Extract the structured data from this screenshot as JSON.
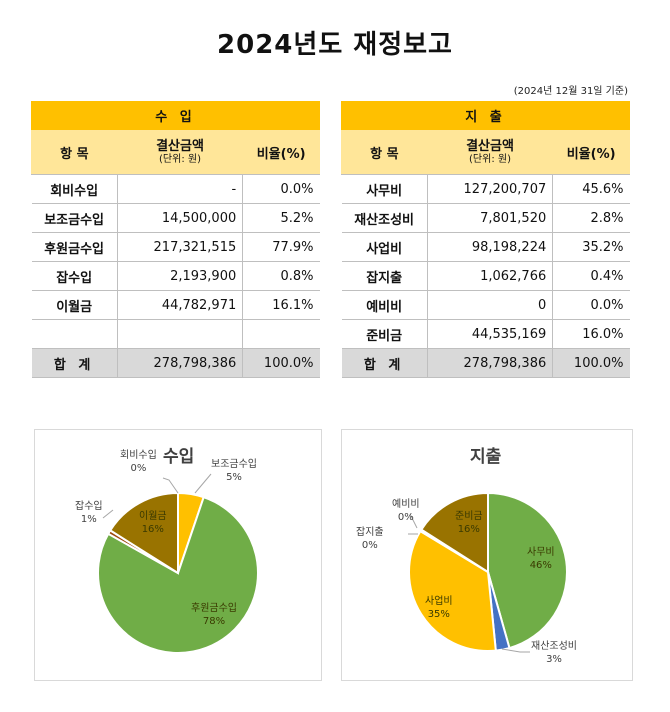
{
  "title": "2024년도 재정보고",
  "basis_date": "(2024년 12월 31일 기준)",
  "income_table": {
    "section": "수 입",
    "headers": {
      "item": "항 목",
      "amount": "결산금액",
      "unit": "(단위: 원)",
      "ratio": "비율(%)"
    },
    "rows": [
      {
        "item": "회비수입",
        "amount": "-",
        "ratio": "0.0%"
      },
      {
        "item": "보조금수입",
        "amount": "14,500,000",
        "ratio": "5.2%"
      },
      {
        "item": "후원금수입",
        "amount": "217,321,515",
        "ratio": "77.9%"
      },
      {
        "item": "잡수입",
        "amount": "2,193,900",
        "ratio": "0.8%"
      },
      {
        "item": "이월금",
        "amount": "44,782,971",
        "ratio": "16.1%"
      },
      {
        "item": "",
        "amount": "",
        "ratio": ""
      }
    ],
    "total": {
      "item": "합 계",
      "amount": "278,798,386",
      "ratio": "100.0%"
    }
  },
  "expense_table": {
    "section": "지 출",
    "headers": {
      "item": "항 목",
      "amount": "결산금액",
      "unit": "(단위: 원)",
      "ratio": "비율(%)"
    },
    "rows": [
      {
        "item": "사무비",
        "amount": "127,200,707",
        "ratio": "45.6%"
      },
      {
        "item": "재산조성비",
        "amount": "7,801,520",
        "ratio": "2.8%"
      },
      {
        "item": "사업비",
        "amount": "98,198,224",
        "ratio": "35.2%"
      },
      {
        "item": "잡지출",
        "amount": "1,062,766",
        "ratio": "0.4%"
      },
      {
        "item": "예비비",
        "amount": "0",
        "ratio": "0.0%"
      },
      {
        "item": "준비금",
        "amount": "44,535,169",
        "ratio": "16.0%"
      }
    ],
    "total": {
      "item": "합 계",
      "amount": "278,798,386",
      "ratio": "100.0%"
    }
  },
  "chart_data": [
    {
      "type": "pie",
      "title": "수입",
      "slices": [
        {
          "label": "회비수입",
          "value": 0,
          "pct_label": "0%",
          "color": "#ffc000"
        },
        {
          "label": "보조금수입",
          "value": 14500000,
          "pct_label": "5%",
          "color": "#ffc000"
        },
        {
          "label": "후원금수입",
          "value": 217321515,
          "pct_label": "78%",
          "color": "#70ad47"
        },
        {
          "label": "잡수입",
          "value": 2193900,
          "pct_label": "1%",
          "color": "#9e480e"
        },
        {
          "label": "이월금",
          "value": 44782971,
          "pct_label": "16%",
          "color": "#997300"
        }
      ]
    },
    {
      "type": "pie",
      "title": "지출",
      "slices": [
        {
          "label": "사무비",
          "value": 127200707,
          "pct_label": "46%",
          "color": "#70ad47"
        },
        {
          "label": "재산조성비",
          "value": 7801520,
          "pct_label": "3%",
          "color": "#4472c4"
        },
        {
          "label": "사업비",
          "value": 98198224,
          "pct_label": "35%",
          "color": "#ffc000"
        },
        {
          "label": "잡지출",
          "value": 1062766,
          "pct_label": "0%",
          "color": "#ed7d31"
        },
        {
          "label": "예비비",
          "value": 0,
          "pct_label": "0%",
          "color": "#a5a5a5"
        },
        {
          "label": "준비금",
          "value": 44535169,
          "pct_label": "16%",
          "color": "#997300"
        }
      ]
    }
  ]
}
